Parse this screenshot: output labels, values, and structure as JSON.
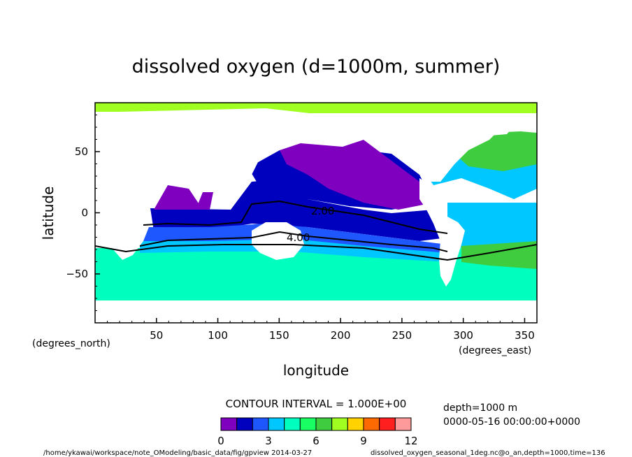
{
  "chart_data": {
    "type": "heatmap",
    "title": "dissolved oxygen (d=1000m, summer)",
    "xlabel": "longitude",
    "ylabel": "latitude",
    "x_unit": "(degrees_east)",
    "y_unit": "(degrees_north)",
    "xlim": [
      0,
      360
    ],
    "ylim": [
      -90,
      90
    ],
    "x_ticks": [
      50,
      100,
      150,
      200,
      250,
      300,
      350
    ],
    "y_ticks": [
      50,
      0,
      -50
    ],
    "contour_labels": [
      "2.00",
      "4.00"
    ],
    "contour_interval_text": "CONTOUR INTERVAL = 1.000E+00",
    "colorbar": {
      "levels": [
        0,
        1,
        2,
        3,
        4,
        5,
        6,
        7,
        8,
        9,
        10,
        11,
        12
      ],
      "tick_labels": [
        "0",
        "3",
        "6",
        "9",
        "12"
      ],
      "tick_values": [
        0,
        3,
        6,
        9,
        12
      ],
      "colors": [
        "#7f00bf",
        "#0000bf",
        "#1f57ff",
        "#00c7ff",
        "#00ffbf",
        "#19ff63",
        "#3fcc3f",
        "#a0ff20",
        "#ffd200",
        "#ff6a00",
        "#ff1f1f",
        "#ff9a9a"
      ]
    },
    "grid": false
  },
  "info": {
    "depth": "depth=1000 m",
    "time": "0000-05-16 00:00:00+0000"
  },
  "footer": {
    "left": "/home/ykawai/workspace/note_OModeling/basic_data/fig/gpview  2014-03-27",
    "right": "dissolved_oxygen_seasonal_1deg.nc@o_an,depth=1000,time=136"
  }
}
